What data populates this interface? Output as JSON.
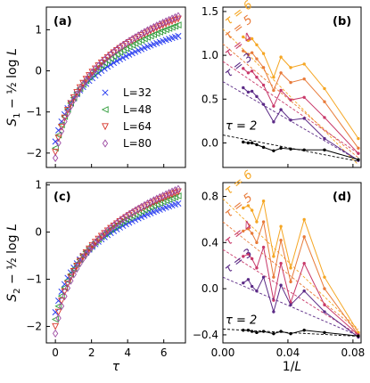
{
  "chart_data": [
    {
      "panel_label": "(a)",
      "type": "scatter",
      "ylabel": "S_1 − ½ log L",
      "xlabel": "",
      "xlim": [
        -0.5,
        7.2
      ],
      "ylim": [
        -2.35,
        1.55
      ],
      "xticks": [
        "0",
        "2",
        "4",
        "6"
      ],
      "yticks": [
        "−2",
        "−1",
        "0",
        "1"
      ],
      "legend": {
        "placement": "lower-right",
        "entries": [
          "L=32",
          "L=48",
          "L=64",
          "L=80"
        ]
      },
      "series": [
        {
          "name": "L=32",
          "marker": "x",
          "color": "#2b3ff0",
          "offset_at_x0": -1.72,
          "end_value": 0.86
        },
        {
          "name": "L=48",
          "marker": "tri-left",
          "color": "#2e9b38",
          "offset_at_x0": -1.88,
          "end_value": 1.13
        },
        {
          "name": "L=64",
          "marker": "tri-down",
          "color": "#d8362a",
          "offset_at_x0": -1.98,
          "end_value": 1.28
        },
        {
          "name": "L=80",
          "marker": "diamond",
          "color": "#9c4aa2",
          "offset_at_x0": -2.12,
          "end_value": 1.35
        }
      ]
    },
    {
      "panel_label": "(b)",
      "type": "line",
      "xlabel": "",
      "xlim": [
        0.0,
        0.085
      ],
      "ylim": [
        -0.28,
        1.55
      ],
      "xticks": [],
      "yticks": [
        "0.0",
        "0.5",
        "1.0",
        "1.5"
      ],
      "series": [
        {
          "name": "τ = 6",
          "color": "#f5a623",
          "fit_intercept": 1.3,
          "fit_slope": -18.6,
          "x": [
            0.0125,
            0.0156,
            0.0179,
            0.0208,
            0.025,
            0.0312,
            0.0357,
            0.0417,
            0.05,
            0.0625,
            0.0833
          ],
          "y": [
            1.21,
            1.17,
            1.19,
            1.12,
            1.02,
            0.75,
            0.98,
            0.86,
            0.9,
            0.62,
            0.05
          ]
        },
        {
          "name": "τ = 5",
          "color": "#e87b3a",
          "fit_intercept": 1.13,
          "fit_slope": -15.6,
          "x": [
            0.0125,
            0.0156,
            0.0179,
            0.0208,
            0.025,
            0.0312,
            0.0357,
            0.0417,
            0.05,
            0.0625,
            0.0833
          ],
          "y": [
            1.05,
            1.01,
            1.03,
            0.96,
            0.86,
            0.6,
            0.8,
            0.69,
            0.73,
            0.47,
            -0.06
          ]
        },
        {
          "name": "τ = 4",
          "color": "#c8396a",
          "fit_intercept": 0.93,
          "fit_slope": -12.6,
          "x": [
            0.0125,
            0.0156,
            0.0179,
            0.0208,
            0.025,
            0.0312,
            0.0357,
            0.0417,
            0.05,
            0.0625,
            0.0833
          ],
          "y": [
            0.85,
            0.8,
            0.82,
            0.75,
            0.66,
            0.42,
            0.6,
            0.49,
            0.52,
            0.29,
            -0.12
          ]
        },
        {
          "name": "τ = 3",
          "color": "#5b2a86",
          "fit_intercept": 0.7,
          "fit_slope": -10.8,
          "x": [
            0.0125,
            0.0156,
            0.0179,
            0.0208,
            0.025,
            0.0312,
            0.0357,
            0.0417,
            0.05,
            0.0625,
            0.0833
          ],
          "y": [
            0.63,
            0.58,
            0.59,
            0.53,
            0.44,
            0.24,
            0.38,
            0.26,
            0.28,
            0.05,
            -0.2
          ]
        },
        {
          "name": "τ = 2",
          "color": "#000000",
          "fit_intercept": 0.09,
          "fit_slope": -3.6,
          "x": [
            0.0125,
            0.0156,
            0.0179,
            0.0208,
            0.025,
            0.0312,
            0.0357,
            0.0417,
            0.05,
            0.0625,
            0.0833
          ],
          "y": [
            0.01,
            0.0,
            0.0,
            -0.02,
            -0.05,
            -0.09,
            -0.06,
            -0.07,
            -0.08,
            -0.08,
            -0.19
          ]
        }
      ]
    },
    {
      "panel_label": "(c)",
      "type": "scatter",
      "ylabel": "S_2 − ½ log L",
      "xlabel": "τ",
      "xlim": [
        -0.5,
        7.2
      ],
      "ylim": [
        -2.35,
        1.05
      ],
      "xticks": [
        "0",
        "2",
        "4",
        "6"
      ],
      "yticks": [
        "−2",
        "−1",
        "0",
        "1"
      ],
      "series": [
        {
          "name": "L=32",
          "marker": "x",
          "color": "#2b3ff0",
          "offset_at_x0": -1.7,
          "end_value": 0.62
        },
        {
          "name": "L=48",
          "marker": "tri-left",
          "color": "#2e9b38",
          "offset_at_x0": -1.85,
          "end_value": 0.78
        },
        {
          "name": "L=64",
          "marker": "tri-down",
          "color": "#d8362a",
          "offset_at_x0": -2.0,
          "end_value": 0.87
        },
        {
          "name": "L=80",
          "marker": "diamond",
          "color": "#9c4aa2",
          "offset_at_x0": -2.15,
          "end_value": 0.93
        }
      ]
    },
    {
      "panel_label": "(d)",
      "type": "line",
      "xlabel": "1/L",
      "xlim": [
        0.0,
        0.085
      ],
      "ylim": [
        -0.47,
        0.92
      ],
      "xticks": [
        "0.00",
        "0.04",
        "0.08"
      ],
      "yticks": [
        "−0.4",
        "0.0",
        "0.4",
        "0.8"
      ],
      "series": [
        {
          "name": "τ = 6",
          "color": "#f5a623",
          "fit_intercept": 0.78,
          "fit_slope": -13.6,
          "x": [
            0.0125,
            0.0156,
            0.0179,
            0.0208,
            0.025,
            0.0312,
            0.0357,
            0.0417,
            0.05,
            0.0625,
            0.0833
          ],
          "y": [
            0.7,
            0.72,
            0.68,
            0.58,
            0.76,
            0.28,
            0.54,
            0.18,
            0.6,
            0.1,
            -0.38
          ]
        },
        {
          "name": "τ = 5",
          "color": "#e87b3a",
          "fit_intercept": 0.58,
          "fit_slope": -11.3,
          "x": [
            0.0125,
            0.0156,
            0.0179,
            0.0208,
            0.025,
            0.0312,
            0.0357,
            0.0417,
            0.05,
            0.0625,
            0.0833
          ],
          "y": [
            0.5,
            0.52,
            0.48,
            0.4,
            0.58,
            0.1,
            0.42,
            0.06,
            0.45,
            0.0,
            -0.4
          ]
        },
        {
          "name": "τ = 4",
          "color": "#c8396a",
          "fit_intercept": 0.34,
          "fit_slope": -8.9,
          "x": [
            0.0125,
            0.0156,
            0.0179,
            0.0208,
            0.025,
            0.0312,
            0.0357,
            0.0417,
            0.05,
            0.0625,
            0.0833
          ],
          "y": [
            0.28,
            0.3,
            0.26,
            0.18,
            0.36,
            -0.1,
            0.22,
            -0.12,
            0.22,
            -0.14,
            -0.4
          ]
        },
        {
          "name": "τ = 3",
          "color": "#5b2a86",
          "fit_intercept": 0.1,
          "fit_slope": -6.1,
          "x": [
            0.0125,
            0.0156,
            0.0179,
            0.0208,
            0.025,
            0.0312,
            0.0357,
            0.0417,
            0.05,
            0.0625,
            0.0833
          ],
          "y": [
            0.05,
            0.08,
            0.02,
            -0.02,
            0.1,
            -0.2,
            0.03,
            -0.14,
            -0.02,
            -0.2,
            -0.42
          ]
        },
        {
          "name": "τ = 2",
          "color": "#000000",
          "fit_intercept": -0.35,
          "fit_slope": -0.75,
          "x": [
            0.0125,
            0.0156,
            0.0179,
            0.0208,
            0.025,
            0.0312,
            0.0357,
            0.0417,
            0.05,
            0.0625,
            0.0833
          ],
          "y": [
            -0.36,
            -0.36,
            -0.37,
            -0.38,
            -0.37,
            -0.39,
            -0.37,
            -0.39,
            -0.36,
            -0.38,
            -0.41
          ]
        }
      ]
    }
  ]
}
